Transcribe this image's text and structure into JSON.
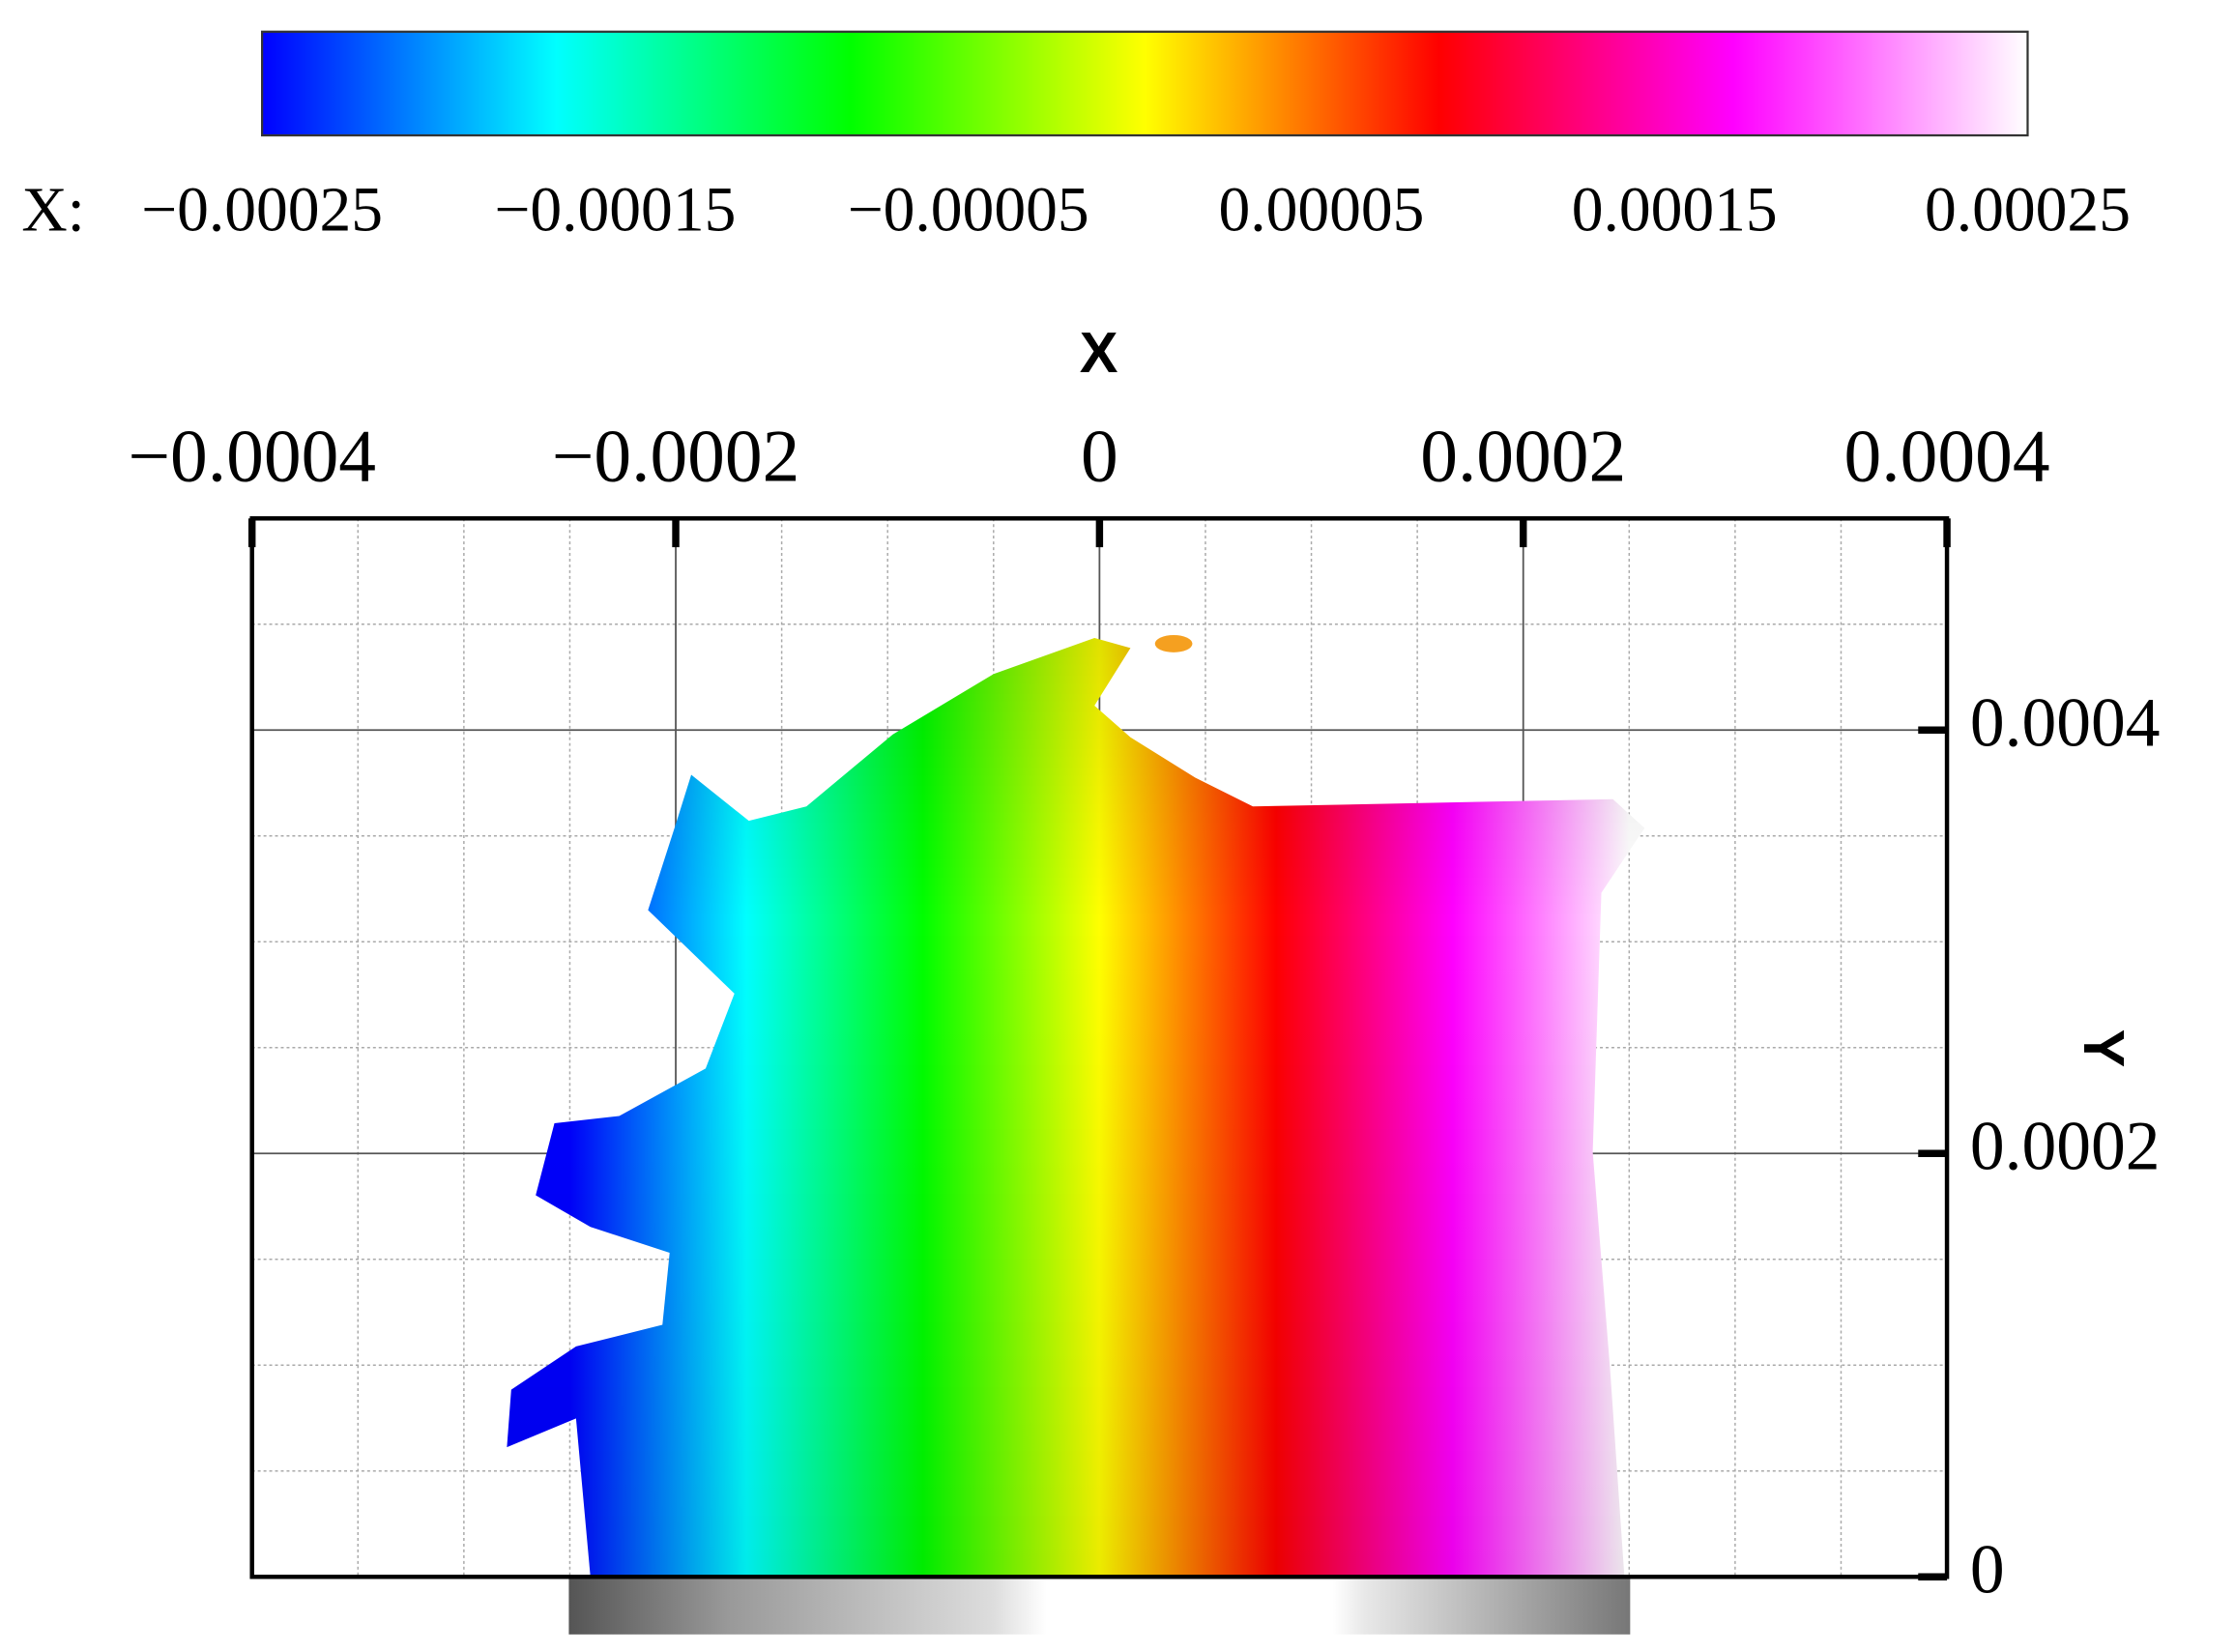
{
  "chart_data": {
    "type": "surface",
    "colorbar": {
      "label": "X:",
      "lim": [
        -0.00025,
        0.00025
      ],
      "ticks": [
        {
          "value": -0.00025,
          "label": "−0.00025"
        },
        {
          "value": -0.00015,
          "label": "−0.00015"
        },
        {
          "value": -5e-05,
          "label": "−0.00005"
        },
        5e-05,
        0.00015,
        0.00025
      ],
      "colors": [
        "#0000ff",
        "#00ffff",
        "#00ff00",
        "#ffff00",
        "#ff0000",
        "#ff00ff",
        "#ffffff"
      ]
    },
    "xlabel": "X",
    "ylabel": "Y",
    "xlim": [
      -0.0004,
      0.0004
    ],
    "ylim": [
      0,
      0.0005
    ],
    "xticks": [
      {
        "value": -0.0004,
        "label": "−0.0004"
      },
      {
        "value": -0.0002,
        "label": "−0.0002"
      },
      0,
      0.0002,
      0.0004
    ],
    "yticks": [
      0,
      0.0002,
      0.0004
    ],
    "xminor": [
      -0.00035,
      -0.0003,
      -0.00025,
      -0.00015,
      -0.0001,
      -5e-05,
      5e-05,
      0.0001,
      0.00015,
      0.00025,
      0.0003,
      0.00035
    ],
    "yminor": [
      5e-05,
      0.0001,
      0.00015,
      0.00025,
      0.0003,
      0.00035,
      0.00045
    ],
    "grid": true
  }
}
